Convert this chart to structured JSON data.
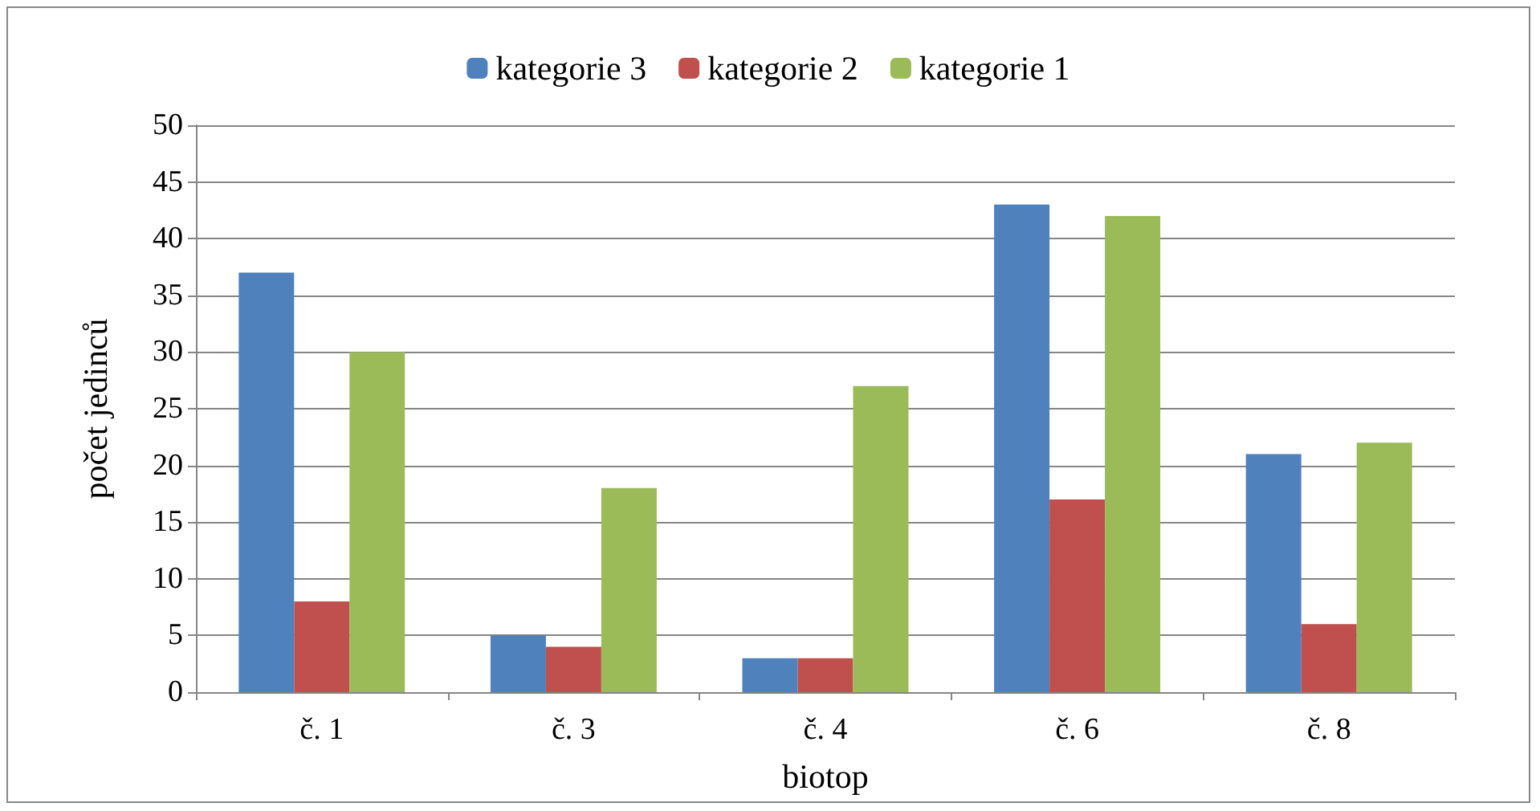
{
  "chart_data": {
    "type": "bar",
    "xlabel": "biotop",
    "ylabel": "počet jedinců",
    "categories": [
      "č. 1",
      "č. 3",
      "č. 4",
      "č. 6",
      "č. 8"
    ],
    "series": [
      {
        "name": "kategorie 3",
        "color": "#4f81bd",
        "values": [
          37,
          5,
          3,
          43,
          21
        ]
      },
      {
        "name": "kategorie 2",
        "color": "#c0504d",
        "values": [
          8,
          4,
          3,
          17,
          6
        ]
      },
      {
        "name": "kategorie 1",
        "color": "#9bbb59",
        "values": [
          30,
          18,
          27,
          42,
          22
        ]
      }
    ],
    "ylim": [
      0,
      50
    ],
    "yticks": [
      0,
      5,
      10,
      15,
      20,
      25,
      30,
      35,
      40,
      45,
      50
    ],
    "grid": "y",
    "legend": "top"
  }
}
